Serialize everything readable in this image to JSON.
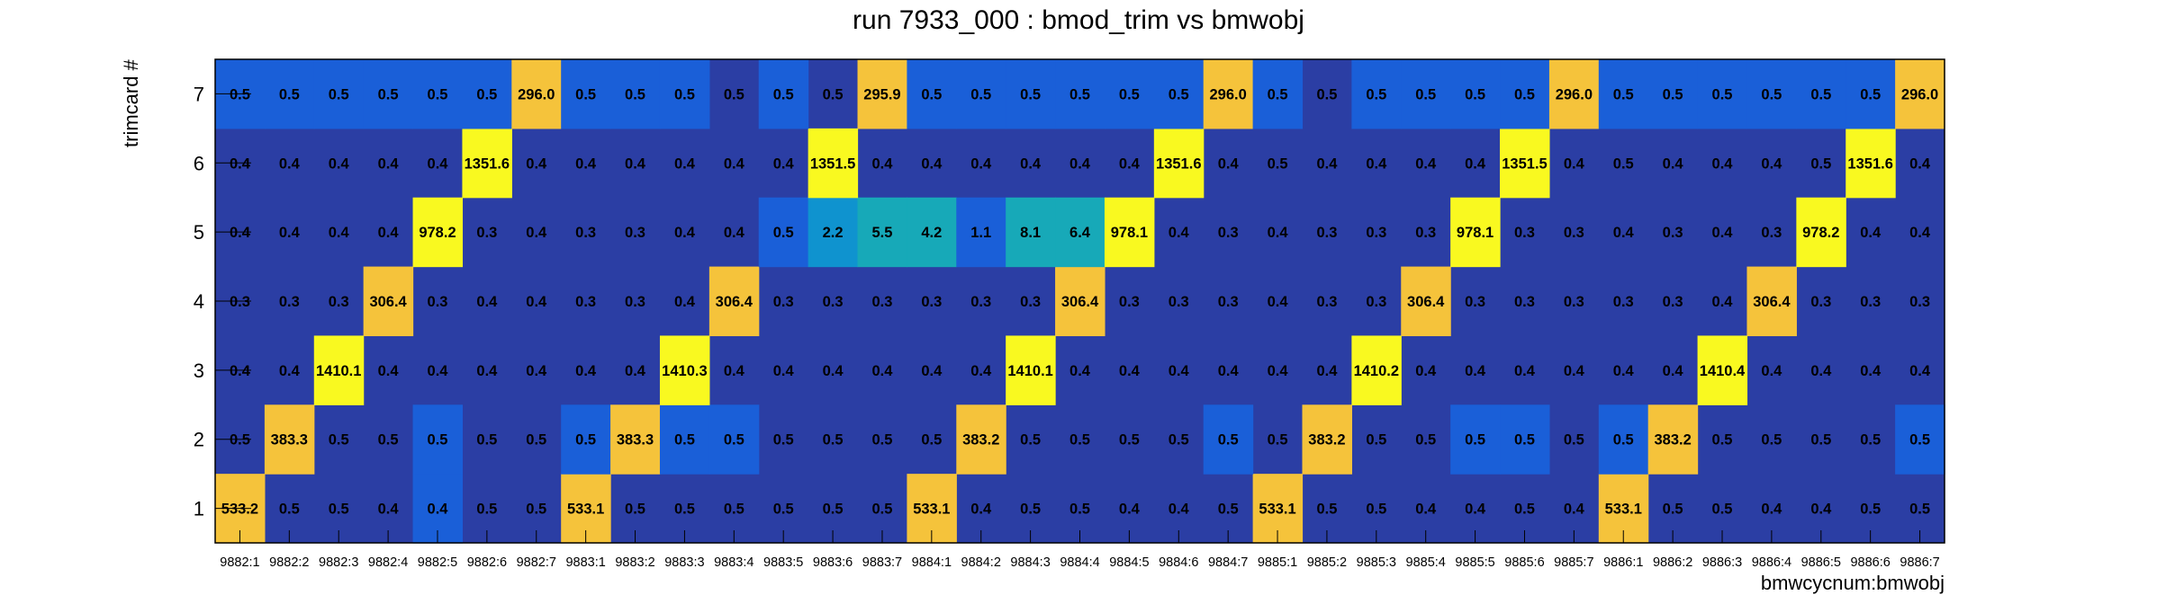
{
  "colors": {
    "background": "#2b3ea4",
    "levels": [
      "#1a5fd8",
      "#0f93cf",
      "#17a9b8",
      "#f5c33b",
      "#f9f920"
    ]
  },
  "chart_data": {
    "type": "heatmap",
    "title": "run 7933_000 : bmod_trim vs bmwobj",
    "xlabel": "bmwcycnum:bmwobj",
    "ylabel": "trimcard #",
    "x_categories": [
      "9882:1",
      "9882:2",
      "9882:3",
      "9882:4",
      "9882:5",
      "9882:6",
      "9882:7",
      "9883:1",
      "9883:2",
      "9883:3",
      "9883:4",
      "9883:5",
      "9883:6",
      "9883:7",
      "9884:1",
      "9884:2",
      "9884:3",
      "9884:4",
      "9884:5",
      "9884:6",
      "9884:7",
      "9885:1",
      "9885:2",
      "9885:3",
      "9885:4",
      "9885:5",
      "9885:6",
      "9885:7",
      "9886:1",
      "9886:2",
      "9886:3",
      "9886:4",
      "9886:5",
      "9886:6",
      "9886:7"
    ],
    "y_categories": [
      "1",
      "2",
      "3",
      "4",
      "5",
      "6",
      "7"
    ],
    "values": [
      [
        "533.2",
        "0.5",
        "0.5",
        "0.4",
        "0.4",
        "0.5",
        "0.5",
        "533.1",
        "0.5",
        "0.5",
        "0.5",
        "0.5",
        "0.5",
        "0.5",
        "533.1",
        "0.4",
        "0.5",
        "0.5",
        "0.4",
        "0.4",
        "0.5",
        "533.1",
        "0.5",
        "0.5",
        "0.4",
        "0.4",
        "0.5",
        "0.4",
        "533.1",
        "0.5",
        "0.5",
        "0.4",
        "0.4",
        "0.5",
        "0.5"
      ],
      [
        "0.5",
        "383.3",
        "0.5",
        "0.5",
        "0.5",
        "0.5",
        "0.5",
        "0.5",
        "383.3",
        "0.5",
        "0.5",
        "0.5",
        "0.5",
        "0.5",
        "0.5",
        "383.2",
        "0.5",
        "0.5",
        "0.5",
        "0.5",
        "0.5",
        "0.5",
        "383.2",
        "0.5",
        "0.5",
        "0.5",
        "0.5",
        "0.5",
        "0.5",
        "383.2",
        "0.5",
        "0.5",
        "0.5",
        "0.5",
        "0.5"
      ],
      [
        "0.4",
        "0.4",
        "1410.1",
        "0.4",
        "0.4",
        "0.4",
        "0.4",
        "0.4",
        "0.4",
        "1410.3",
        "0.4",
        "0.4",
        "0.4",
        "0.4",
        "0.4",
        "0.4",
        "1410.1",
        "0.4",
        "0.4",
        "0.4",
        "0.4",
        "0.4",
        "0.4",
        "1410.2",
        "0.4",
        "0.4",
        "0.4",
        "0.4",
        "0.4",
        "0.4",
        "1410.4",
        "0.4",
        "0.4",
        "0.4",
        "0.4"
      ],
      [
        "0.3",
        "0.3",
        "0.3",
        "306.4",
        "0.3",
        "0.4",
        "0.4",
        "0.3",
        "0.3",
        "0.4",
        "306.4",
        "0.3",
        "0.3",
        "0.3",
        "0.3",
        "0.3",
        "0.3",
        "306.4",
        "0.3",
        "0.3",
        "0.3",
        "0.4",
        "0.3",
        "0.3",
        "306.4",
        "0.3",
        "0.3",
        "0.3",
        "0.3",
        "0.3",
        "0.4",
        "306.4",
        "0.3",
        "0.3",
        "0.3"
      ],
      [
        "0.4",
        "0.4",
        "0.4",
        "0.4",
        "978.2",
        "0.3",
        "0.4",
        "0.3",
        "0.3",
        "0.4",
        "0.4",
        "0.5",
        "2.2",
        "5.5",
        "4.2",
        "1.1",
        "8.1",
        "6.4",
        "978.1",
        "0.4",
        "0.3",
        "0.4",
        "0.3",
        "0.3",
        "0.3",
        "978.1",
        "0.3",
        "0.3",
        "0.4",
        "0.3",
        "0.4",
        "0.3",
        "978.2",
        "0.4",
        "0.4"
      ],
      [
        "0.4",
        "0.4",
        "0.4",
        "0.4",
        "0.4",
        "1351.6",
        "0.4",
        "0.4",
        "0.4",
        "0.4",
        "0.4",
        "0.4",
        "1351.5",
        "0.4",
        "0.4",
        "0.4",
        "0.4",
        "0.4",
        "0.4",
        "1351.6",
        "0.4",
        "0.5",
        "0.4",
        "0.4",
        "0.4",
        "0.4",
        "1351.5",
        "0.4",
        "0.5",
        "0.4",
        "0.4",
        "0.4",
        "0.5",
        "1351.6",
        "0.4"
      ],
      [
        "0.5",
        "0.5",
        "0.5",
        "0.5",
        "0.5",
        "0.5",
        "296.0",
        "0.5",
        "0.5",
        "0.5",
        "0.5",
        "0.5",
        "0.5",
        "295.9",
        "0.5",
        "0.5",
        "0.5",
        "0.5",
        "0.5",
        "0.5",
        "296.0",
        "0.5",
        "0.5",
        "0.5",
        "0.5",
        "0.5",
        "0.5",
        "296.0",
        "0.5",
        "0.5",
        "0.5",
        "0.5",
        "0.5",
        "0.5",
        "296.0"
      ]
    ],
    "cell_level": [
      [
        4,
        0,
        0,
        0,
        1,
        0,
        0,
        4,
        0,
        0,
        0,
        0,
        0,
        0,
        4,
        0,
        0,
        0,
        0,
        0,
        0,
        4,
        0,
        0,
        0,
        0,
        0,
        0,
        4,
        0,
        0,
        0,
        0,
        0,
        0
      ],
      [
        0,
        4,
        0,
        0,
        1,
        0,
        0,
        1,
        4,
        1,
        1,
        0,
        0,
        0,
        0,
        4,
        0,
        0,
        0,
        0,
        1,
        0,
        4,
        0,
        0,
        1,
        1,
        0,
        1,
        4,
        0,
        0,
        0,
        0,
        1
      ],
      [
        0,
        0,
        5,
        0,
        0,
        0,
        0,
        0,
        0,
        5,
        0,
        0,
        0,
        0,
        0,
        0,
        5,
        0,
        0,
        0,
        0,
        0,
        0,
        5,
        0,
        0,
        0,
        0,
        0,
        0,
        5,
        0,
        0,
        0,
        0
      ],
      [
        0,
        0,
        0,
        4,
        0,
        0,
        0,
        0,
        0,
        0,
        4,
        0,
        0,
        0,
        0,
        0,
        0,
        4,
        0,
        0,
        0,
        0,
        0,
        0,
        4,
        0,
        0,
        0,
        0,
        0,
        0,
        4,
        0,
        0,
        0
      ],
      [
        0,
        0,
        0,
        0,
        5,
        0,
        0,
        0,
        0,
        0,
        0,
        1,
        2,
        3,
        3,
        1,
        3,
        3,
        5,
        0,
        0,
        0,
        0,
        0,
        0,
        5,
        0,
        0,
        0,
        0,
        0,
        0,
        5,
        0,
        0
      ],
      [
        0,
        0,
        0,
        0,
        0,
        5,
        0,
        0,
        0,
        0,
        0,
        0,
        5,
        0,
        0,
        0,
        0,
        0,
        0,
        5,
        0,
        0,
        0,
        0,
        0,
        0,
        5,
        0,
        0,
        0,
        0,
        0,
        0,
        5,
        0
      ],
      [
        1,
        1,
        1,
        1,
        1,
        1,
        4,
        1,
        1,
        1,
        0,
        1,
        0,
        4,
        1,
        1,
        1,
        1,
        1,
        1,
        4,
        1,
        0,
        1,
        1,
        1,
        1,
        4,
        1,
        1,
        1,
        1,
        1,
        1,
        4
      ]
    ],
    "grid": false,
    "legend": "none"
  }
}
